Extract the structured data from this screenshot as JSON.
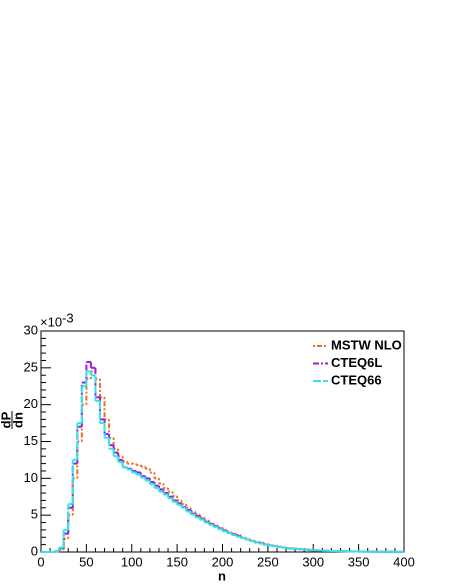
{
  "chart_data": {
    "type": "histogram",
    "xlabel": "n",
    "ylabel": [
      "dP",
      "dn"
    ],
    "y_multiplier": "×10",
    "y_exponent": "-3",
    "xlim": [
      0,
      400
    ],
    "ylim": [
      0,
      30
    ],
    "xticks": [
      0,
      50,
      100,
      150,
      200,
      250,
      300,
      350,
      400
    ],
    "yticks": [
      0,
      5,
      10,
      15,
      20,
      25,
      30
    ],
    "legend": "top-right",
    "bins": [
      0,
      5,
      10,
      15,
      20,
      25,
      30,
      35,
      40,
      45,
      50,
      55,
      60,
      65,
      70,
      75,
      80,
      85,
      90,
      95,
      100,
      105,
      110,
      115,
      120,
      125,
      130,
      135,
      140,
      145,
      150,
      155,
      160,
      165,
      170,
      175,
      180,
      185,
      190,
      195,
      200,
      205,
      210,
      215,
      220,
      225,
      230,
      235,
      240,
      245,
      250,
      255,
      260,
      265,
      270,
      275,
      280,
      285,
      290,
      295,
      300,
      305,
      310,
      315,
      320,
      325,
      330,
      335,
      340,
      345,
      350,
      355,
      360,
      365,
      370,
      375,
      380,
      385,
      390,
      395,
      400
    ],
    "series": [
      {
        "name": "MSTW NLO",
        "color": "#e0742a",
        "dash": "2,2,5,2",
        "values": [
          0,
          0,
          0,
          0.05,
          0.3,
          1.8,
          5,
          10,
          15,
          20,
          23.5,
          24.5,
          23.5,
          21,
          18,
          15.5,
          14,
          13,
          12.3,
          12,
          12,
          11.8,
          11.6,
          11.3,
          10.8,
          10,
          9.3,
          8.7,
          8.2,
          7.6,
          7,
          6.5,
          6,
          5.5,
          5.1,
          4.7,
          4.3,
          3.9,
          3.6,
          3.3,
          3,
          2.7,
          2.5,
          2.3,
          2,
          1.8,
          1.6,
          1.4,
          1.3,
          1.1,
          1,
          0.85,
          0.75,
          0.65,
          0.55,
          0.5,
          0.45,
          0.4,
          0.35,
          0.3,
          0.25,
          0.22,
          0.2,
          0.17,
          0.15,
          0.13,
          0.12,
          0.1,
          0.09,
          0.08,
          0.07,
          0.06,
          0.05,
          0.05,
          0.04,
          0.04,
          0.03,
          0.03,
          0.02,
          0.02
        ]
      },
      {
        "name": "CTEQ6L",
        "color": "#9b1fd6",
        "dash": "6,2,2,2",
        "values": [
          0,
          0,
          0,
          0.1,
          0.5,
          2.5,
          6,
          12,
          17,
          23,
          25.8,
          25,
          21,
          18,
          16,
          14.5,
          13.5,
          12.5,
          11.5,
          11.3,
          11,
          10.8,
          10.3,
          10,
          9.5,
          9,
          8.5,
          8,
          7.5,
          7,
          6.6,
          6.1,
          5.7,
          5.2,
          4.9,
          4.5,
          4.1,
          3.8,
          3.5,
          3.2,
          2.9,
          2.6,
          2.4,
          2.2,
          1.9,
          1.7,
          1.5,
          1.3,
          1.2,
          1,
          0.9,
          0.8,
          0.7,
          0.6,
          0.5,
          0.45,
          0.4,
          0.35,
          0.3,
          0.25,
          0.22,
          0.2,
          0.17,
          0.15,
          0.13,
          0.12,
          0.1,
          0.09,
          0.08,
          0.07,
          0.06,
          0.05,
          0.05,
          0.04,
          0.04,
          0.03,
          0.03,
          0.02,
          0.02,
          0.02
        ]
      },
      {
        "name": "CTEQ66",
        "color": "#33e6e6",
        "dash": "8,2",
        "values": [
          0,
          0,
          0,
          0.1,
          0.6,
          3,
          6.5,
          12.5,
          17.5,
          22.5,
          24.5,
          24,
          20.5,
          17.5,
          15.5,
          14,
          13,
          12.2,
          11.5,
          11.2,
          10.8,
          10.5,
          10.1,
          9.7,
          9.2,
          8.7,
          8.2,
          7.8,
          7.3,
          6.8,
          6.4,
          6,
          5.5,
          5.1,
          4.7,
          4.4,
          4,
          3.7,
          3.4,
          3.1,
          2.8,
          2.6,
          2.3,
          2.1,
          1.9,
          1.7,
          1.5,
          1.3,
          1.15,
          1,
          0.9,
          0.8,
          0.7,
          0.6,
          0.5,
          0.45,
          0.4,
          0.35,
          0.3,
          0.25,
          0.22,
          0.2,
          0.17,
          0.15,
          0.13,
          0.12,
          0.1,
          0.09,
          0.08,
          0.07,
          0.06,
          0.05,
          0.05,
          0.04,
          0.04,
          0.03,
          0.03,
          0.02,
          0.02,
          0.02
        ]
      }
    ]
  }
}
